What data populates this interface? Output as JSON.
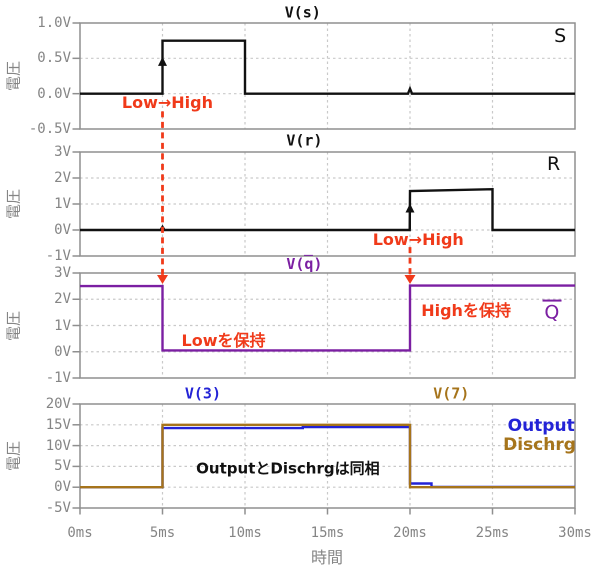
{
  "figure": {
    "xlabel": "時間",
    "ylabel": "電圧",
    "xlim_ms": [
      0,
      30
    ],
    "x_ticks": [
      {
        "ms": 0,
        "label": "0ms"
      },
      {
        "ms": 5,
        "label": "5ms"
      },
      {
        "ms": 10,
        "label": "10ms"
      },
      {
        "ms": 15,
        "label": "15ms"
      },
      {
        "ms": 20,
        "label": "20ms"
      },
      {
        "ms": 25,
        "label": "25ms"
      },
      {
        "ms": 30,
        "label": "30ms"
      }
    ],
    "grid": true,
    "legend_position": "inline-top-right",
    "colors": {
      "background": "#ffffff",
      "axis": "#8f8f8f",
      "grid": "#c9c9c9",
      "tick_text": "#858585",
      "annotation_red": "#f03a1a",
      "signal_black": "#111111",
      "qbar_purple": "#7b1fa2",
      "output_blue": "#2323d6",
      "dischrg_gold": "#a6741b"
    }
  },
  "chart_data": [
    {
      "type": "line",
      "titles": [
        {
          "text": "V(s)",
          "color": "#111111",
          "x_ms": 13.5
        }
      ],
      "corner_label": {
        "text": "S",
        "overline": false,
        "color": "#111111",
        "x_ms": 29.1,
        "v": 0.8
      },
      "ylabel": "電圧",
      "ylim": [
        -0.5,
        1.0
      ],
      "yticks": [
        {
          "v": 1.0,
          "label": "1.0V"
        },
        {
          "v": 0.5,
          "label": "0.5V"
        },
        {
          "v": 0.0,
          "label": "0.0V"
        },
        {
          "v": -0.5,
          "label": "-0.5V"
        }
      ],
      "series": [
        {
          "name": "V(s)",
          "color": "#111111",
          "points_ms_v": [
            [
              0,
              0
            ],
            [
              5,
              0
            ],
            [
              5,
              0.75
            ],
            [
              10,
              0.75
            ],
            [
              10,
              0
            ],
            [
              19.88,
              0
            ],
            [
              20,
              0.07
            ],
            [
              20.12,
              0
            ],
            [
              30,
              0
            ]
          ]
        }
      ]
    },
    {
      "type": "line",
      "titles": [
        {
          "text": "V(r)",
          "color": "#111111",
          "x_ms": 13.6
        }
      ],
      "corner_label": {
        "text": "R",
        "overline": false,
        "color": "#111111",
        "x_ms": 28.7,
        "v": 2.5
      },
      "ylabel": "電圧",
      "ylim": [
        -1,
        3
      ],
      "yticks": [
        {
          "v": 3,
          "label": "3V"
        },
        {
          "v": 2,
          "label": "2V"
        },
        {
          "v": 1,
          "label": "1V"
        },
        {
          "v": 0,
          "label": "0V"
        },
        {
          "v": -1,
          "label": "-1V"
        }
      ],
      "series": [
        {
          "name": "V(r)",
          "color": "#111111",
          "points_ms_v": [
            [
              0,
              0
            ],
            [
              4.88,
              0
            ],
            [
              5,
              0.12
            ],
            [
              5.12,
              0
            ],
            [
              19.98,
              0
            ],
            [
              20,
              1.5
            ],
            [
              25,
              1.57
            ],
            [
              25,
              0
            ],
            [
              30,
              0
            ]
          ]
        }
      ]
    },
    {
      "type": "line",
      "titles": [
        {
          "text": "V(q̄)",
          "prefix": "V(",
          "overline_char": "q",
          "suffix": ")",
          "color": "#7b1fa2",
          "x_ms": 13.6
        }
      ],
      "corner_label": {
        "text": "Q",
        "overline": true,
        "color": "#7b1fa2",
        "x_ms": 28.6,
        "v": 1.5
      },
      "ylabel": "電圧",
      "ylim": [
        -1,
        3
      ],
      "yticks": [
        {
          "v": 3,
          "label": "3V"
        },
        {
          "v": 2,
          "label": "2V"
        },
        {
          "v": 1,
          "label": "1V"
        },
        {
          "v": 0,
          "label": "0V"
        },
        {
          "v": -1,
          "label": "-1V"
        }
      ],
      "series": [
        {
          "name": "V(q̄)",
          "color": "#7b1fa2",
          "points_ms_v": [
            [
              0,
              2.5
            ],
            [
              5,
              2.5
            ],
            [
              5,
              0.05
            ],
            [
              20,
              0.05
            ],
            [
              20,
              2.52
            ],
            [
              30,
              2.52
            ]
          ]
        }
      ]
    },
    {
      "type": "line",
      "titles": [
        {
          "text": "V(3)",
          "color": "#2323d6",
          "x_ms": 7.45
        },
        {
          "text": "V(7)",
          "color": "#a6741b",
          "x_ms": 22.5
        }
      ],
      "ylabel": "電圧",
      "ylim": [
        -5,
        20
      ],
      "yticks": [
        {
          "v": 20,
          "label": "20V"
        },
        {
          "v": 15,
          "label": "15V"
        },
        {
          "v": 10,
          "label": "10V"
        },
        {
          "v": 5,
          "label": "5V"
        },
        {
          "v": 0,
          "label": "0V"
        },
        {
          "v": -5,
          "label": "-5V"
        }
      ],
      "show_x_ticks": true,
      "series": [
        {
          "name": "V(3)",
          "color": "#2323d6",
          "points_ms_v": [
            [
              0,
              0
            ],
            [
              5,
              0
            ],
            [
              5,
              14.2
            ],
            [
              13.5,
              14.2
            ],
            [
              13.5,
              14.45
            ],
            [
              20,
              14.45
            ],
            [
              20,
              0.9
            ],
            [
              21.3,
              0.9
            ],
            [
              21.3,
              0.05
            ],
            [
              30,
              0.05
            ]
          ]
        },
        {
          "name": "V(7)",
          "color": "#a6741b",
          "points_ms_v": [
            [
              0,
              0
            ],
            [
              5,
              0
            ],
            [
              5,
              15
            ],
            [
              20,
              15
            ],
            [
              20,
              0
            ],
            [
              30,
              0
            ]
          ]
        }
      ]
    }
  ],
  "annotations": [
    {
      "name": "annotation-s-low-to-high",
      "plot": 0,
      "x_ms": 5.3,
      "v": -0.13,
      "text": "Low→High",
      "color": "#f03a1a",
      "size": 16
    },
    {
      "name": "annotation-r-low-to-high",
      "plot": 1,
      "x_ms": 20.5,
      "v": -0.38,
      "text": "Low→High",
      "color": "#f03a1a",
      "size": 16
    },
    {
      "name": "annotation-qbar-hold-low",
      "plot": 2,
      "x_ms": 8.7,
      "v": 0.42,
      "text": "Lowを保持",
      "color": "#f03a1a",
      "size": 16
    },
    {
      "name": "annotation-qbar-hold-high",
      "plot": 2,
      "x_ms": 23.4,
      "v": 1.55,
      "text": "Highを保持",
      "color": "#f03a1a",
      "size": 16
    },
    {
      "name": "annotation-output-dischrg-same-phase",
      "plot": 3,
      "x_ms": 12.6,
      "v": 4.3,
      "text": "OutputとDischrgは同相",
      "color": "#111111",
      "size": 15
    },
    {
      "name": "legend-output",
      "plot": 3,
      "x_ms": 27.95,
      "v": 14.5,
      "text": "Output",
      "color": "#2323d6",
      "size": 17
    },
    {
      "name": "legend-dischrg",
      "plot": 3,
      "x_ms": 27.85,
      "v": 9.8,
      "text": "Dischrg",
      "color": "#a6741b",
      "size": 17
    }
  ],
  "black_arrows": [
    {
      "name": "s-rising-edge-arrow",
      "plot": 0,
      "x_ms": 5,
      "v_from": 0.02,
      "v_to": 0.52
    },
    {
      "name": "r-rising-edge-arrow",
      "plot": 1,
      "x_ms": 20,
      "v_from": 0.03,
      "v_to": 1.02
    }
  ],
  "red_dashed_arrows": [
    {
      "name": "cause-effect-arrow-set",
      "x_ms": 5,
      "from_plot": 0,
      "from_v": -0.25,
      "to_plot": 2,
      "to_v": 2.58
    },
    {
      "name": "cause-effect-arrow-reset",
      "x_ms": 20,
      "from_plot": 1,
      "from_v": -0.66,
      "to_plot": 2,
      "to_v": 2.58
    }
  ]
}
